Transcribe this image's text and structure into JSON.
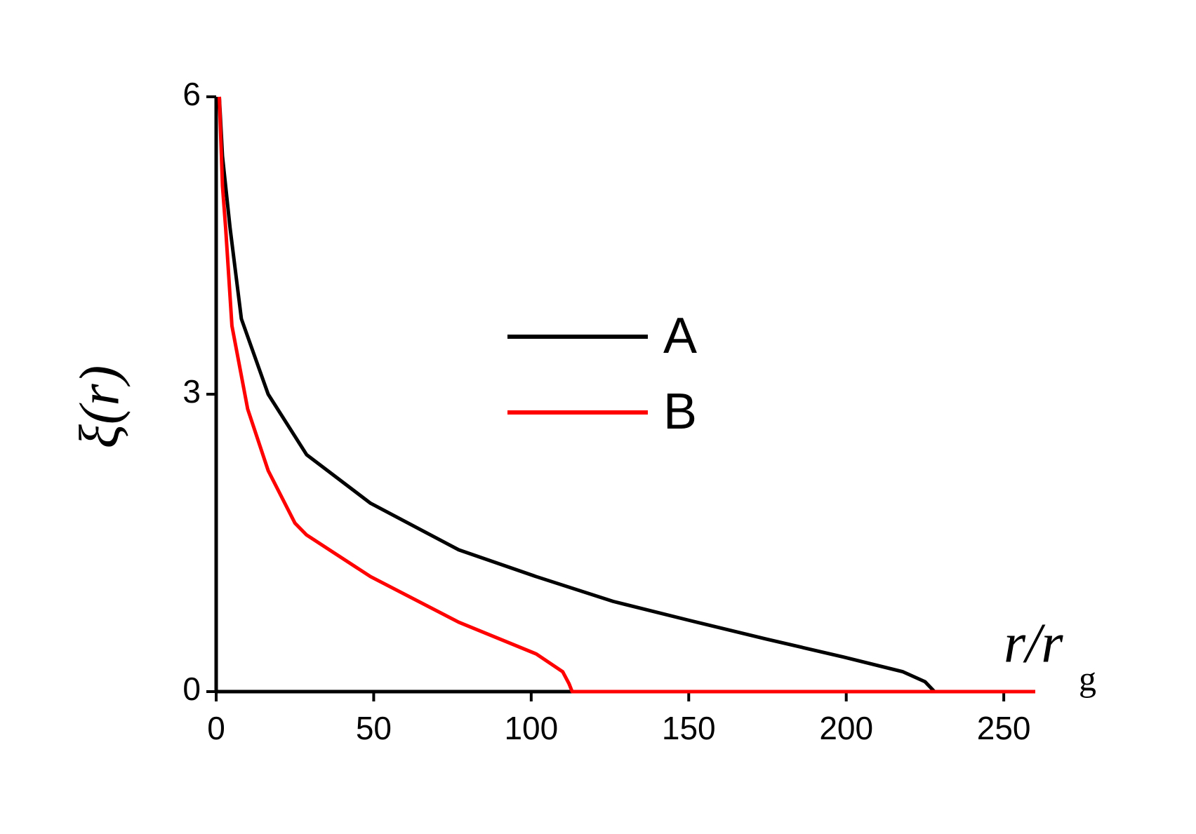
{
  "chart_data": {
    "type": "line",
    "xlabel": "r/r",
    "xlabel_sub": "g",
    "ylabel": "ξ(r)",
    "xlim": [
      0,
      260
    ],
    "ylim": [
      0,
      6
    ],
    "xticks": [
      0,
      50,
      100,
      150,
      200,
      250
    ],
    "yticks": [
      0,
      3,
      6
    ],
    "series": [
      {
        "name": "A",
        "color": "#000000",
        "x": [
          1,
          2,
          4.4,
          8,
          16.5,
          28.7,
          49,
          77,
          101.6,
          126,
          150,
          174.6,
          199,
          218,
          225,
          228
        ],
        "values": [
          6,
          5.4,
          4.68,
          3.76,
          3.0,
          2.39,
          1.9,
          1.43,
          1.16,
          0.91,
          0.72,
          0.53,
          0.35,
          0.2,
          0.1,
          0
        ]
      },
      {
        "name": "B",
        "color": "#ff0000",
        "x": [
          1,
          2,
          3,
          5,
          10,
          16.5,
          25,
          28.7,
          49,
          77,
          101.6,
          110,
          112,
          113,
          260
        ],
        "values": [
          6,
          5.1,
          4.68,
          3.69,
          2.85,
          2.23,
          1.7,
          1.58,
          1.16,
          0.7,
          0.38,
          0.2,
          0.08,
          0,
          0
        ]
      }
    ]
  }
}
